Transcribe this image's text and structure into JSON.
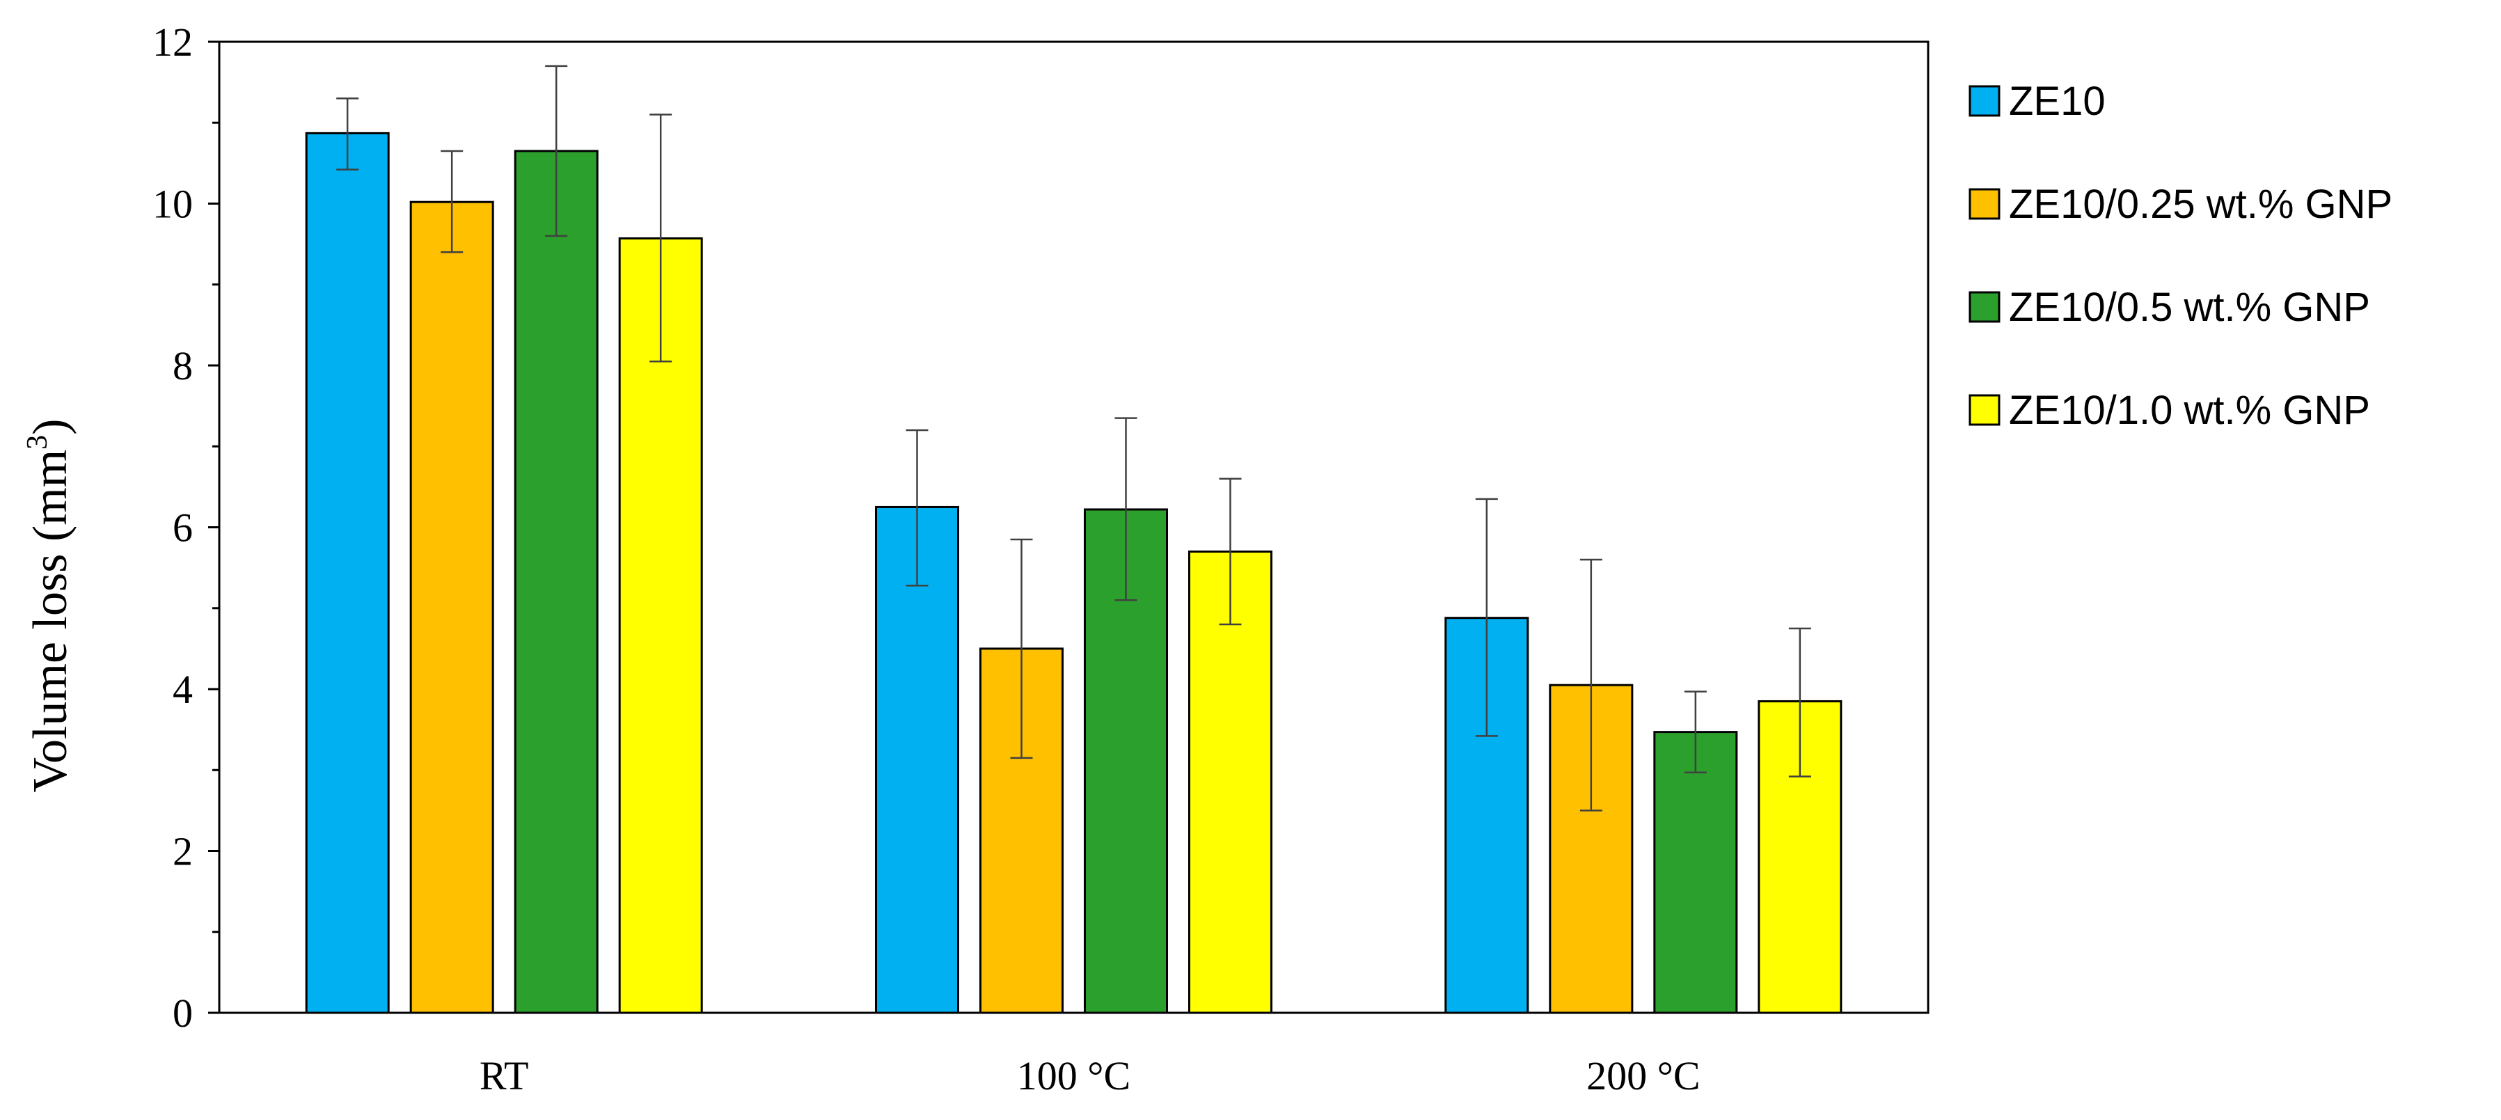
{
  "chart_data": {
    "type": "bar",
    "title": "",
    "xlabel": "",
    "ylabel": "Volume loss (mm",
    "ylabel_sup": "3",
    "ylabel_end": ")",
    "ylim": [
      0,
      12
    ],
    "yticks": [
      "0",
      "2",
      "4",
      "6",
      "8",
      "10",
      "12"
    ],
    "ytick_values": [
      0,
      2,
      4,
      6,
      8,
      10,
      12
    ],
    "minor_tick_step": 1,
    "grid": false,
    "legend_position": "right",
    "categories": [
      "RT",
      "100 °C",
      "200 °C"
    ],
    "series": [
      {
        "name": "ZE10",
        "color": "#00B0F0",
        "values": [
          10.87,
          6.25,
          4.88
        ],
        "error_low": [
          10.42,
          5.28,
          3.42
        ],
        "error_high": [
          11.3,
          7.2,
          6.35
        ]
      },
      {
        "name": "ZE10/0.25 wt.% GNP",
        "color": "#FFC000",
        "values": [
          10.02,
          4.5,
          4.05
        ],
        "error_low": [
          9.4,
          3.15,
          2.5
        ],
        "error_high": [
          10.65,
          5.85,
          5.6
        ]
      },
      {
        "name": "ZE10/0.5 wt.% GNP",
        "color": "#2CA02C",
        "values": [
          10.65,
          6.22,
          3.47
        ],
        "error_low": [
          9.6,
          5.1,
          2.97
        ],
        "error_high": [
          11.7,
          7.35,
          3.97
        ]
      },
      {
        "name": "ZE10/1.0 wt.% GNP",
        "color": "#FFFF00",
        "values": [
          9.57,
          5.7,
          3.85
        ],
        "error_low": [
          8.05,
          4.8,
          2.92
        ],
        "error_high": [
          11.1,
          6.6,
          4.75
        ]
      }
    ]
  }
}
